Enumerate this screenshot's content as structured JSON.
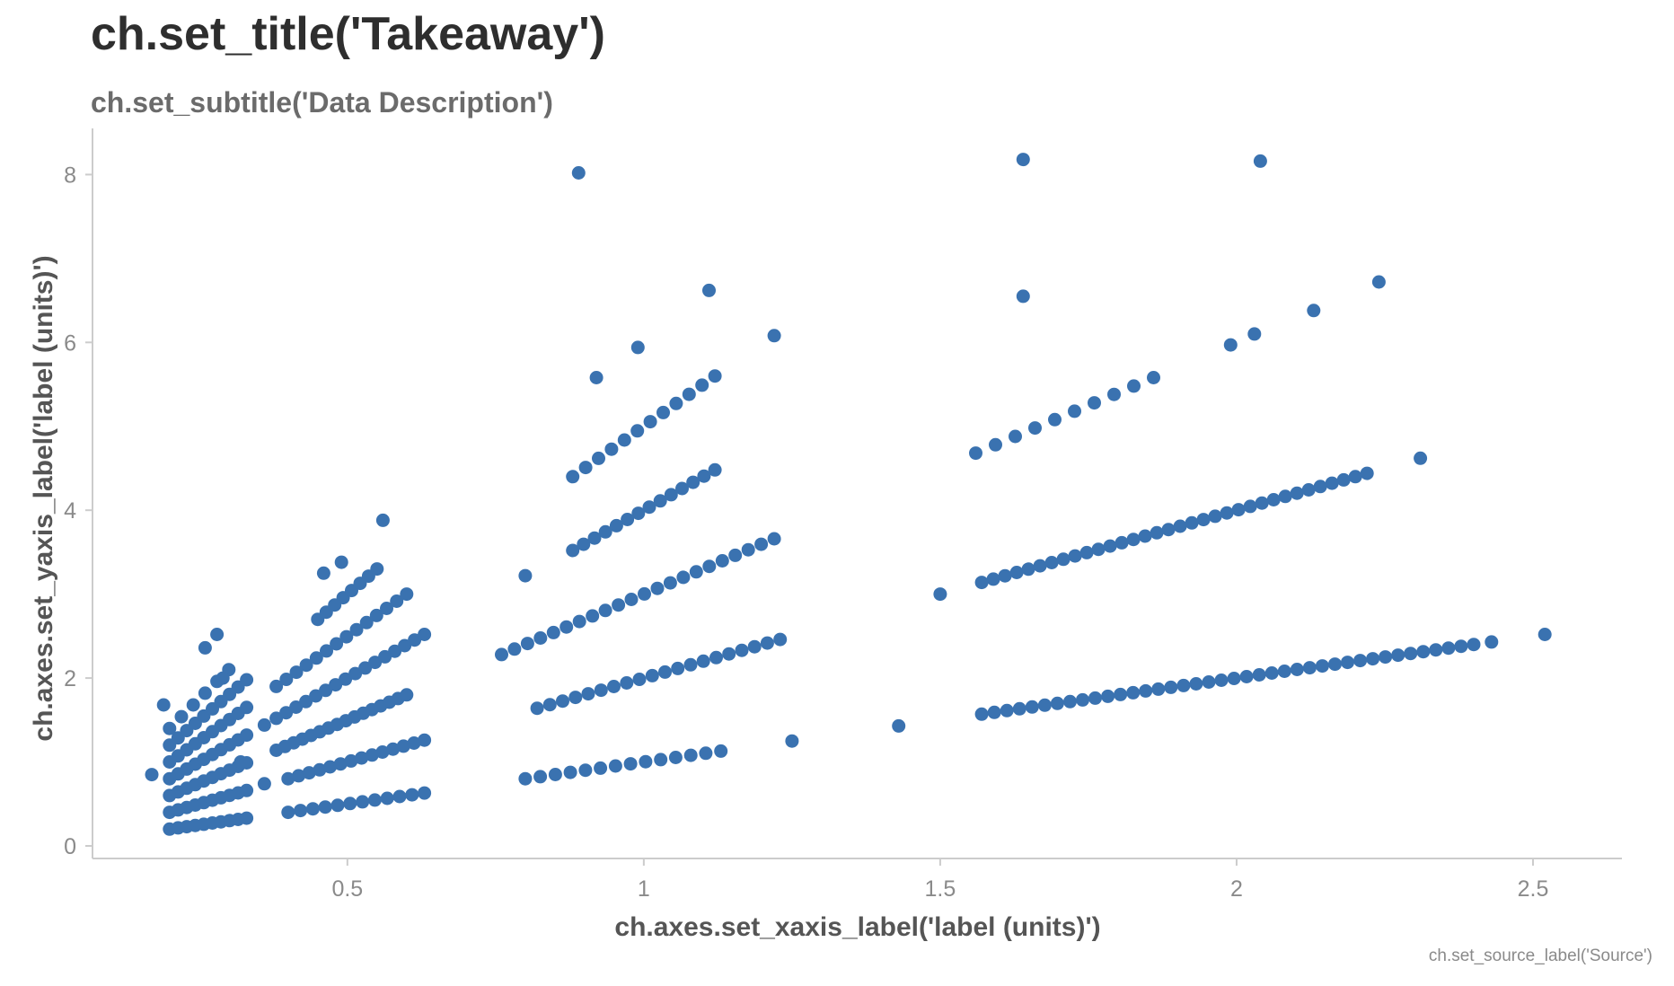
{
  "chart_data": {
    "type": "scatter",
    "title": "ch.set_title('Takeaway')",
    "subtitle": "ch.set_subtitle('Data Description')",
    "xlabel": "ch.axes.set_xaxis_label('label (units)')",
    "ylabel": "ch.axes.set_yaxis_label('label (units)')",
    "source": "ch.set_source_label('Source')",
    "xlim": [
      0.07,
      2.65
    ],
    "ylim": [
      -0.15,
      8.55
    ],
    "xticks": [
      0.5,
      1,
      1.5,
      2,
      2.5
    ],
    "xtick_labels": [
      "0.5",
      "1",
      "1.5",
      "2",
      "2.5"
    ],
    "yticks": [
      0,
      2,
      4,
      6,
      8
    ],
    "ytick_labels": [
      "0",
      "2",
      "4",
      "6",
      "8"
    ],
    "grid": false,
    "legend": "none",
    "marker_color": "#3a72b0",
    "series": [
      {
        "lines": [
          {
            "x0": 0.2,
            "x1": 0.33,
            "y0": 0.2,
            "y1": 0.33,
            "n": 10
          },
          {
            "x0": 0.2,
            "x1": 0.33,
            "y0": 0.4,
            "y1": 0.66,
            "n": 10
          },
          {
            "x0": 0.2,
            "x1": 0.33,
            "y0": 0.6,
            "y1": 0.99,
            "n": 10
          },
          {
            "x0": 0.2,
            "x1": 0.33,
            "y0": 0.8,
            "y1": 1.32,
            "n": 10
          },
          {
            "x0": 0.2,
            "x1": 0.33,
            "y0": 1.0,
            "y1": 1.65,
            "n": 10
          },
          {
            "x0": 0.2,
            "x1": 0.33,
            "y0": 1.2,
            "y1": 1.98,
            "n": 10
          },
          {
            "x0": 0.2,
            "x1": 0.3,
            "y0": 1.4,
            "y1": 2.1,
            "n": 6
          },
          {
            "x0": 0.4,
            "x1": 0.63,
            "y0": 0.4,
            "y1": 0.63,
            "n": 12
          },
          {
            "x0": 0.4,
            "x1": 0.63,
            "y0": 0.8,
            "y1": 1.26,
            "n": 14
          },
          {
            "x0": 0.38,
            "x1": 0.6,
            "y0": 1.14,
            "y1": 1.8,
            "n": 16
          },
          {
            "x0": 0.38,
            "x1": 0.63,
            "y0": 1.52,
            "y1": 2.52,
            "n": 16
          },
          {
            "x0": 0.38,
            "x1": 0.6,
            "y0": 1.9,
            "y1": 3.0,
            "n": 14
          },
          {
            "x0": 0.45,
            "x1": 0.55,
            "y0": 2.7,
            "y1": 3.3,
            "n": 8
          },
          {
            "x0": 0.8,
            "x1": 1.13,
            "y0": 0.8,
            "y1": 1.13,
            "n": 14
          },
          {
            "x0": 0.82,
            "x1": 1.23,
            "y0": 1.64,
            "y1": 2.46,
            "n": 20
          },
          {
            "x0": 0.76,
            "x1": 1.22,
            "y0": 2.28,
            "y1": 3.66,
            "n": 22
          },
          {
            "x0": 0.88,
            "x1": 1.12,
            "y0": 3.52,
            "y1": 4.48,
            "n": 14
          },
          {
            "x0": 0.88,
            "x1": 1.12,
            "y0": 4.4,
            "y1": 5.6,
            "n": 12
          },
          {
            "x0": 1.57,
            "x1": 2.4,
            "y0": 1.57,
            "y1": 2.4,
            "n": 40
          },
          {
            "x0": 1.57,
            "x1": 2.22,
            "y0": 3.14,
            "y1": 4.44,
            "n": 34
          },
          {
            "x0": 1.56,
            "x1": 1.86,
            "y0": 4.68,
            "y1": 5.58,
            "n": 10
          }
        ],
        "points": [
          [
            0.17,
            0.85
          ],
          [
            0.19,
            1.68
          ],
          [
            0.26,
            2.36
          ],
          [
            0.28,
            2.52
          ],
          [
            0.29,
            2.0
          ],
          [
            0.32,
            1.0
          ],
          [
            0.36,
            0.74
          ],
          [
            0.36,
            1.44
          ],
          [
            0.46,
            3.25
          ],
          [
            0.49,
            3.38
          ],
          [
            0.56,
            3.88
          ],
          [
            0.8,
            3.22
          ],
          [
            0.89,
            8.02
          ],
          [
            0.92,
            5.58
          ],
          [
            0.99,
            5.94
          ],
          [
            1.11,
            6.62
          ],
          [
            1.22,
            6.08
          ],
          [
            1.25,
            1.25
          ],
          [
            1.43,
            1.43
          ],
          [
            1.5,
            3.0
          ],
          [
            1.64,
            8.18
          ],
          [
            1.64,
            6.55
          ],
          [
            1.99,
            5.97
          ],
          [
            2.03,
            6.1
          ],
          [
            2.04,
            8.16
          ],
          [
            2.13,
            6.38
          ],
          [
            2.24,
            6.72
          ],
          [
            2.31,
            4.62
          ],
          [
            2.43,
            2.43
          ],
          [
            2.52,
            2.52
          ]
        ]
      }
    ]
  }
}
